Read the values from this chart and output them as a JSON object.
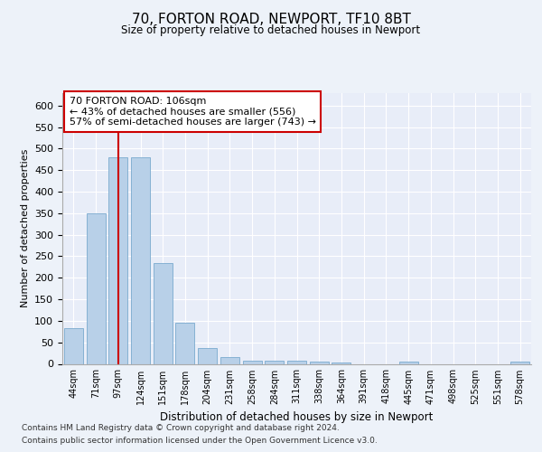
{
  "title1": "70, FORTON ROAD, NEWPORT, TF10 8BT",
  "title2": "Size of property relative to detached houses in Newport",
  "xlabel": "Distribution of detached houses by size in Newport",
  "ylabel": "Number of detached properties",
  "categories": [
    "44sqm",
    "71sqm",
    "97sqm",
    "124sqm",
    "151sqm",
    "178sqm",
    "204sqm",
    "231sqm",
    "258sqm",
    "284sqm",
    "311sqm",
    "338sqm",
    "364sqm",
    "391sqm",
    "418sqm",
    "445sqm",
    "471sqm",
    "498sqm",
    "525sqm",
    "551sqm",
    "578sqm"
  ],
  "values": [
    82,
    350,
    480,
    480,
    235,
    95,
    37,
    16,
    8,
    8,
    8,
    5,
    4,
    0,
    0,
    5,
    0,
    0,
    0,
    0,
    5
  ],
  "bar_color": "#b8d0e8",
  "bar_edge_color": "#7aaace",
  "vline_x": 2.0,
  "vline_color": "#cc0000",
  "annotation_text": "70 FORTON ROAD: 106sqm\n← 43% of detached houses are smaller (556)\n57% of semi-detached houses are larger (743) →",
  "annotation_box_color": "#ffffff",
  "annotation_box_edge": "#cc0000",
  "ylim": [
    0,
    630
  ],
  "yticks": [
    0,
    50,
    100,
    150,
    200,
    250,
    300,
    350,
    400,
    450,
    500,
    550,
    600
  ],
  "footnote1": "Contains HM Land Registry data © Crown copyright and database right 2024.",
  "footnote2": "Contains public sector information licensed under the Open Government Licence v3.0.",
  "bg_color": "#edf2f9",
  "plot_bg_color": "#e8edf8"
}
